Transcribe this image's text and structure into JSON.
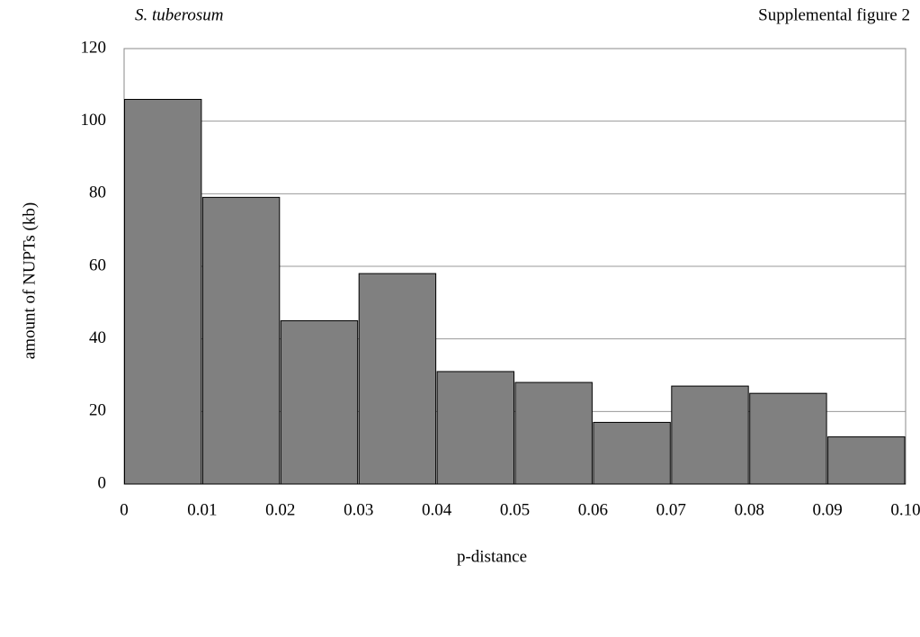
{
  "chart_data": {
    "type": "histogram",
    "title": "S. tuberosum",
    "annotation": "Supplemental figure 2",
    "x_label": "p-distance",
    "y_label": "amount of NUPTs (kb)",
    "bins": [
      0,
      0.01,
      0.02,
      0.03,
      0.04,
      0.05,
      0.06,
      0.07,
      0.08,
      0.09,
      0.1
    ],
    "values": [
      106,
      79,
      45,
      58,
      31,
      28,
      17,
      27,
      25,
      13
    ],
    "color": "#808080",
    "xlim": [
      0,
      0.1
    ],
    "xticks": [
      0,
      0.01,
      0.02,
      0.03,
      0.04,
      0.05,
      0.06,
      0.07,
      0.08,
      0.09,
      {
        "value": 0.1,
        "label": "0.10"
      }
    ],
    "ylim": [
      0,
      120
    ],
    "yticks": [
      0,
      20,
      40,
      60,
      80,
      100,
      120
    ],
    "grid": true
  }
}
